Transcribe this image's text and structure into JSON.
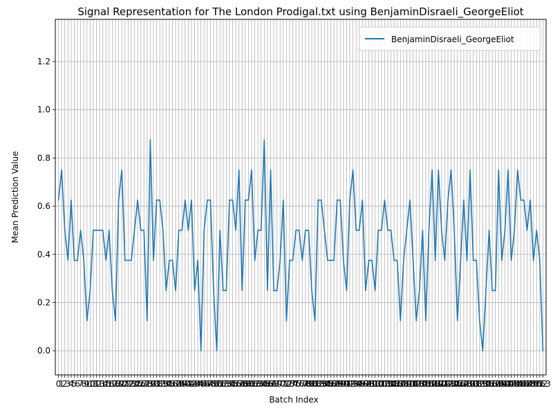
{
  "chart_data": {
    "type": "line",
    "title": "Signal Representation for The London Prodigal.txt using BenjaminDisraeli_GeorgeEliot",
    "xlabel": "Batch Index",
    "ylabel": "Mean Prediction Value",
    "xlim": [
      -1,
      154
    ],
    "ylim": [
      -0.1,
      1.375
    ],
    "yticks": [
      0.0,
      0.2,
      0.4,
      0.6,
      0.8,
      1.0,
      1.2
    ],
    "ytick_labels": [
      "0.0",
      "0.2",
      "0.4",
      "0.6",
      "0.8",
      "1.0",
      "1.2"
    ],
    "grid": true,
    "legend_position": "top-right",
    "series": [
      {
        "name": "BenjaminDisraeli_GeorgeEliot",
        "color": "#1f77b4",
        "values": [
          0.625,
          0.75,
          0.5,
          0.375,
          0.625,
          0.375,
          0.375,
          0.5,
          0.375,
          0.125,
          0.25,
          0.5,
          0.5,
          0.5,
          0.5,
          0.375,
          0.5,
          0.25,
          0.125,
          0.625,
          0.75,
          0.375,
          0.375,
          0.375,
          0.5,
          0.625,
          0.5,
          0.5,
          0.125,
          0.875,
          0.375,
          0.625,
          0.625,
          0.5,
          0.25,
          0.375,
          0.375,
          0.25,
          0.5,
          0.5,
          0.625,
          0.5,
          0.625,
          0.25,
          0.375,
          0.0,
          0.5,
          0.625,
          0.625,
          0.25,
          0.0,
          0.5,
          0.25,
          0.25,
          0.625,
          0.625,
          0.5,
          0.75,
          0.25,
          0.625,
          0.625,
          0.75,
          0.375,
          0.5,
          0.5,
          0.875,
          0.25,
          0.75,
          0.25,
          0.25,
          0.375,
          0.625,
          0.125,
          0.375,
          0.375,
          0.5,
          0.5,
          0.375,
          0.5,
          0.5,
          0.25,
          0.125,
          0.625,
          0.625,
          0.5,
          0.375,
          0.375,
          0.375,
          0.625,
          0.625,
          0.375,
          0.25,
          0.625,
          0.75,
          0.5,
          0.5,
          0.625,
          0.25,
          0.375,
          0.375,
          0.25,
          0.5,
          0.5,
          0.625,
          0.5,
          0.5,
          0.375,
          0.375,
          0.125,
          0.375,
          0.5,
          0.625,
          0.375,
          0.125,
          0.25,
          0.5,
          0.125,
          0.5,
          0.75,
          0.375,
          0.75,
          0.5,
          0.375,
          0.625,
          0.75,
          0.5,
          0.125,
          0.375,
          0.625,
          0.375,
          0.75,
          0.375,
          0.375,
          0.125,
          0.0,
          0.25,
          0.5,
          0.25,
          0.25,
          0.75,
          0.375,
          0.5,
          0.75,
          0.375,
          0.5,
          0.75,
          0.625,
          0.625,
          0.5,
          0.625,
          0.375,
          0.5,
          0.375,
          0.0
        ]
      }
    ]
  }
}
